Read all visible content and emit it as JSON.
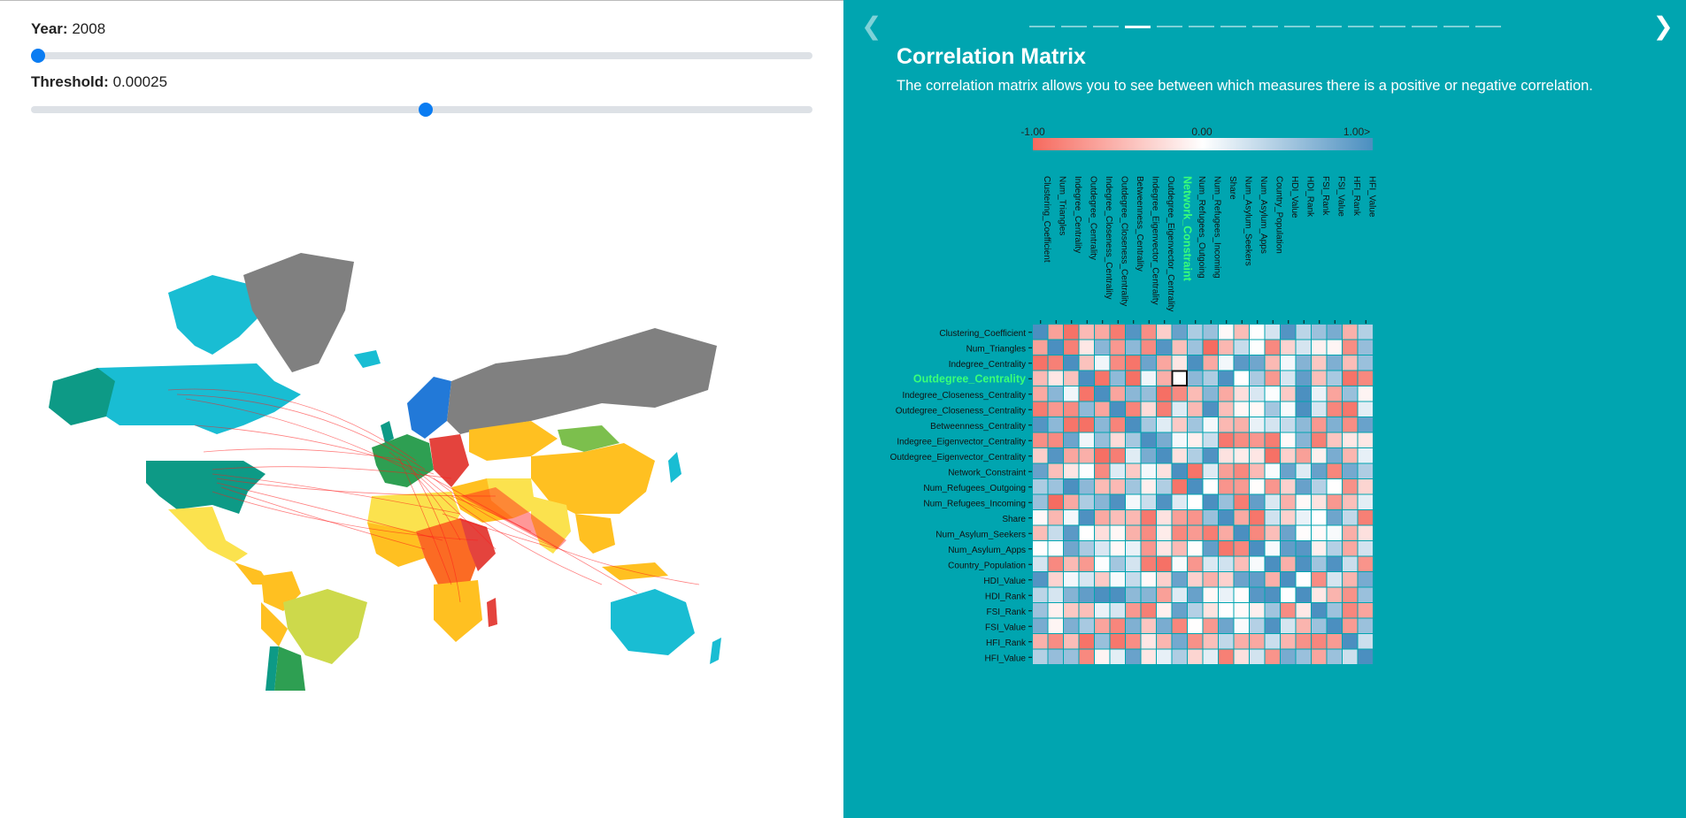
{
  "controls": {
    "year_label": "Year:",
    "year_value": "2008",
    "year_fraction": 0.0,
    "threshold_label": "Threshold:",
    "threshold_value": "0.00025",
    "threshold_fraction": 0.5
  },
  "panel": {
    "title": "Correlation Matrix",
    "description": "The correlation matrix allows you to see between which measures there is a positive or negative correlation.",
    "nav_prev_icon": "chevron-left-icon",
    "nav_next_icon": "chevron-right-icon",
    "steps_total": 15,
    "active_step": 4
  },
  "colors": {
    "panel_bg": "#00a5b0",
    "slider_thumb": "#0a7cf2",
    "highlight_label": "#39ff79",
    "negative": "#f66a5e",
    "neutral": "#ffffff",
    "positive": "#4b8fc0"
  },
  "legend": {
    "min_label": "-1.00",
    "mid_label": "0.00",
    "max_label": "1.00>"
  },
  "matrix": {
    "labels": [
      "Clustering_Coefficient",
      "Num_Triangles",
      "Indegree_Centrality",
      "Outdegree_Centrality",
      "Indegree_Closeness_Centrality",
      "Outdegree_Closeness_Centrality",
      "Betweenness_Centrality",
      "Indegree_Eigenvector_Centrality",
      "Outdegree_Eigenvector_Centrality",
      "Network_Constraint",
      "Num_Refugees_Outgoing",
      "Num_Refugees_Incoming",
      "Share",
      "Num_Asylum_Seekers",
      "Num_Asylum_Apps",
      "Country_Population",
      "HDI_Value",
      "HDI_Rank",
      "FSI_Rank",
      "FSI_Value",
      "HFI_Rank",
      "HFI_Value"
    ],
    "highlight_row": "Outdegree_Centrality",
    "highlight_col": "Network_Constraint"
  }
}
